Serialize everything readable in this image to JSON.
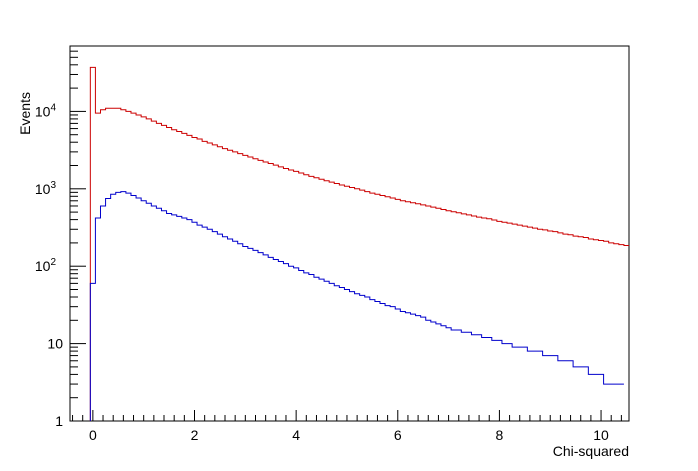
{
  "chart_data": {
    "type": "step-histogram",
    "xlabel": "Chi-squared",
    "ylabel": "Events",
    "xlim": [
      -0.45,
      10.55
    ],
    "ylim": [
      1,
      70000
    ],
    "yscale": "log",
    "grid": false,
    "x_ticks": [
      0,
      2,
      4,
      6,
      8,
      10
    ],
    "y_ticks": [
      {
        "value": 1,
        "base": "1",
        "exp": ""
      },
      {
        "value": 10,
        "base": "10",
        "exp": ""
      },
      {
        "value": 100,
        "base": "10",
        "exp": "2"
      },
      {
        "value": 1000,
        "base": "10",
        "exp": "3"
      },
      {
        "value": 10000,
        "base": "10",
        "exp": "4"
      }
    ],
    "bin_width": 0.1,
    "bin_start": -0.05,
    "series": [
      {
        "color": "#cc0000",
        "values": [
          37000,
          9500,
          10500,
          11000,
          11000,
          11000,
          10500,
          10000,
          9500,
          9000,
          8500,
          8000,
          7500,
          7000,
          6600,
          6200,
          5800,
          5500,
          5200,
          4900,
          4600,
          4400,
          4100,
          3900,
          3700,
          3500,
          3300,
          3150,
          3000,
          2850,
          2700,
          2580,
          2450,
          2330,
          2220,
          2120,
          2020,
          1920,
          1830,
          1750,
          1680,
          1600,
          1520,
          1450,
          1390,
          1330,
          1270,
          1220,
          1170,
          1120,
          1080,
          1040,
          1000,
          960,
          920,
          880,
          850,
          820,
          790,
          760,
          730,
          700,
          680,
          660,
          640,
          620,
          600,
          580,
          560,
          540,
          520,
          505,
          490,
          475,
          460,
          445,
          430,
          420,
          410,
          395,
          380,
          370,
          360,
          350,
          340,
          330,
          320,
          310,
          300,
          295,
          285,
          280,
          270,
          260,
          255,
          245,
          240,
          235,
          225,
          220,
          215,
          210,
          200,
          195,
          190,
          185
        ]
      },
      {
        "color": "#0000cc",
        "values": [
          60,
          420,
          600,
          750,
          850,
          900,
          920,
          880,
          820,
          760,
          700,
          650,
          600,
          560,
          520,
          480,
          460,
          440,
          420,
          400,
          370,
          340,
          320,
          300,
          280,
          260,
          240,
          225,
          210,
          195,
          180,
          170,
          160,
          150,
          140,
          130,
          122,
          115,
          108,
          100,
          95,
          88,
          82,
          78,
          72,
          68,
          64,
          60,
          56,
          53,
          50,
          47,
          44,
          42,
          40,
          37,
          35,
          33,
          31,
          30,
          28,
          26,
          25,
          24,
          23,
          22,
          20,
          19,
          18,
          17,
          16,
          15,
          15,
          14,
          14,
          13,
          13,
          12,
          12,
          11,
          11,
          10,
          10,
          9,
          9,
          9,
          8,
          8,
          8,
          7,
          7,
          7,
          6,
          6,
          6,
          5,
          5,
          5,
          4,
          4,
          4,
          3,
          3,
          3,
          3
        ]
      }
    ]
  }
}
